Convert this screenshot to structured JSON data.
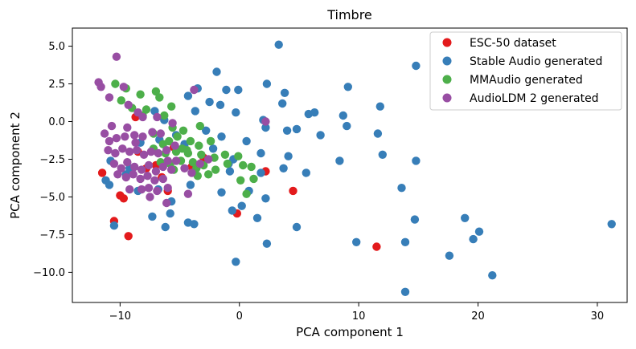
{
  "chart_data": {
    "type": "scatter",
    "title": "Timbre",
    "xlabel": "PCA component 1",
    "ylabel": "PCA component 2",
    "xlim": [
      -14,
      32.5
    ],
    "ylim": [
      -12,
      6.2
    ],
    "xticks": [
      -10,
      0,
      10,
      20,
      30
    ],
    "xtick_labels": [
      "−10",
      "0",
      "10",
      "20",
      "30"
    ],
    "yticks": [
      5.0,
      2.5,
      0.0,
      -2.5,
      -5.0,
      -7.5,
      -10.0
    ],
    "ytick_labels": [
      "5.0",
      "2.5",
      "0.0",
      "−2.5",
      "−5.0",
      "−7.5",
      "−10.0"
    ],
    "grid": false,
    "legend_position": "top-right",
    "series": [
      {
        "name": "ESC-50 dataset",
        "color": "#e31a1c",
        "points": [
          [
            -11.5,
            -3.4
          ],
          [
            -10.5,
            -6.6
          ],
          [
            -10,
            -4.9
          ],
          [
            -9.7,
            -5.1
          ],
          [
            -9.3,
            -7.6
          ],
          [
            -8.5,
            -2.0
          ],
          [
            -7.8,
            -3.1
          ],
          [
            -7,
            -2.9
          ],
          [
            -6.5,
            -3.7
          ],
          [
            -5.5,
            -1.7
          ],
          [
            -4,
            -3.0
          ],
          [
            -3,
            -2.4
          ],
          [
            -0.2,
            -6.1
          ],
          [
            2.2,
            -3.3
          ],
          [
            4.5,
            -4.6
          ],
          [
            11.5,
            -8.3
          ],
          [
            -8.7,
            0.3
          ],
          [
            -6,
            -4.6
          ]
        ]
      },
      {
        "name": "Stable Audio generated",
        "color": "#377eb8",
        "points": [
          [
            3.3,
            5.1
          ],
          [
            14.8,
            3.7
          ],
          [
            -1.9,
            3.3
          ],
          [
            2.3,
            2.5
          ],
          [
            -3.5,
            2.2
          ],
          [
            -1.1,
            2.1
          ],
          [
            -0.1,
            2.1
          ],
          [
            3.8,
            1.9
          ],
          [
            9.1,
            2.3
          ],
          [
            -2.5,
            1.3
          ],
          [
            -1.6,
            1.1
          ],
          [
            3.6,
            1.2
          ],
          [
            5.8,
            0.5
          ],
          [
            6.3,
            0.6
          ],
          [
            8.7,
            0.4
          ],
          [
            11.8,
            1.0
          ],
          [
            -0.3,
            0.6
          ],
          [
            2,
            0.1
          ],
          [
            -2.8,
            -0.6
          ],
          [
            4,
            -0.6
          ],
          [
            6.8,
            -0.9
          ],
          [
            9,
            -0.3
          ],
          [
            11.6,
            -0.8
          ],
          [
            -1.5,
            -1.0
          ],
          [
            0.6,
            -1.3
          ],
          [
            2.2,
            -0.4
          ],
          [
            4.8,
            -0.5
          ],
          [
            1.8,
            -2.1
          ],
          [
            4.1,
            -2.3
          ],
          [
            -0.5,
            -2.5
          ],
          [
            8.4,
            -2.6
          ],
          [
            12,
            -2.2
          ],
          [
            14.8,
            -2.6
          ],
          [
            -0.9,
            -2.8
          ],
          [
            -0.8,
            -3.3
          ],
          [
            1.8,
            -3.4
          ],
          [
            3.7,
            -3.1
          ],
          [
            5.6,
            -3.4
          ],
          [
            0.8,
            -4.6
          ],
          [
            -1.5,
            -4.7
          ],
          [
            2.2,
            -5.1
          ],
          [
            0.2,
            -5.6
          ],
          [
            -0.6,
            -5.9
          ],
          [
            1.5,
            -6.4
          ],
          [
            13.6,
            -4.4
          ],
          [
            14.7,
            -6.5
          ],
          [
            18.9,
            -6.4
          ],
          [
            -7.3,
            -6.3
          ],
          [
            -4.3,
            -6.7
          ],
          [
            -3.8,
            -6.8
          ],
          [
            -6.2,
            -7.0
          ],
          [
            4.8,
            -7.0
          ],
          [
            20.1,
            -7.3
          ],
          [
            19.6,
            -7.8
          ],
          [
            2.3,
            -8.1
          ],
          [
            9.8,
            -8.0
          ],
          [
            13.9,
            -8.0
          ],
          [
            17.6,
            -8.9
          ],
          [
            -0.3,
            -9.3
          ],
          [
            21.2,
            -10.2
          ],
          [
            13.9,
            -11.3
          ],
          [
            31.2,
            -6.8
          ],
          [
            -11.2,
            -3.9
          ],
          [
            -10.9,
            -4.2
          ],
          [
            -10.8,
            -2.6
          ],
          [
            -10.5,
            -6.9
          ],
          [
            -9.5,
            -3.5
          ],
          [
            -6.8,
            -4.5
          ],
          [
            -5.7,
            -5.3
          ],
          [
            -5.8,
            -6.1
          ],
          [
            -8.5,
            -4.6
          ],
          [
            -9.2,
            -3.1
          ],
          [
            -7.1,
            0.7
          ],
          [
            -6.3,
            0.1
          ],
          [
            -5.3,
            -0.9
          ],
          [
            -4.6,
            -1.5
          ],
          [
            -4.3,
            1.7
          ],
          [
            -3.7,
            0.7
          ],
          [
            -4.1,
            -4.2
          ],
          [
            -2.2,
            -1.8
          ],
          [
            -6.7,
            -1.2
          ],
          [
            -8.3,
            -1.4
          ]
        ]
      },
      {
        "name": "MMAudio generated",
        "color": "#4daf4a",
        "points": [
          [
            -10.4,
            2.5
          ],
          [
            -9.5,
            2.2
          ],
          [
            -9.9,
            1.4
          ],
          [
            -8.3,
            1.8
          ],
          [
            -7,
            2.0
          ],
          [
            -6.7,
            1.6
          ],
          [
            -9,
            0.9
          ],
          [
            -7.8,
            0.8
          ],
          [
            -5.7,
            1.0
          ],
          [
            -6.3,
            0.4
          ],
          [
            -5.6,
            -0.4
          ],
          [
            -4.7,
            -0.6
          ],
          [
            -3.3,
            -0.3
          ],
          [
            -5.2,
            -1.0
          ],
          [
            -4.1,
            -1.3
          ],
          [
            -3.4,
            -1.6
          ],
          [
            -2.4,
            -1.3
          ],
          [
            -6.4,
            -1.5
          ],
          [
            -7.2,
            -1.8
          ],
          [
            -6.2,
            -2.1
          ],
          [
            -5.3,
            -2.0
          ],
          [
            -4.3,
            -2.1
          ],
          [
            -3.2,
            -2.2
          ],
          [
            -2.1,
            -2.4
          ],
          [
            -1.2,
            -2.2
          ],
          [
            -0.1,
            -2.3
          ],
          [
            -6.6,
            -2.7
          ],
          [
            -5.8,
            -2.8
          ],
          [
            -4.9,
            -2.6
          ],
          [
            -3.9,
            -2.7
          ],
          [
            -3.0,
            -2.9
          ],
          [
            -2.0,
            -3.2
          ],
          [
            -1.0,
            -2.8
          ],
          [
            0.3,
            -2.9
          ],
          [
            1.0,
            -3.0
          ],
          [
            -2.6,
            -3.5
          ],
          [
            0.1,
            -3.9
          ],
          [
            1.2,
            -3.8
          ],
          [
            -3.5,
            -3.6
          ],
          [
            0.6,
            -4.8
          ],
          [
            -4.8,
            -1.8
          ],
          [
            -5.9,
            -1.3
          ],
          [
            -7.2,
            -0.8
          ],
          [
            -8.1,
            0.4
          ],
          [
            -4.4,
            -1.9
          ],
          [
            -5.5,
            -3.2
          ],
          [
            -3.6,
            -3.1
          ]
        ]
      },
      {
        "name": "AudioLDM 2 generated",
        "color": "#984ea3",
        "points": [
          [
            -10.3,
            4.3
          ],
          [
            -11.8,
            2.6
          ],
          [
            -11.6,
            2.3
          ],
          [
            -10.9,
            1.6
          ],
          [
            -9.7,
            2.3
          ],
          [
            -9.3,
            1.1
          ],
          [
            -8.5,
            0.6
          ],
          [
            -8.1,
            0.3
          ],
          [
            -6.9,
            0.3
          ],
          [
            -5.6,
            -0.1
          ],
          [
            -3.8,
            2.1
          ],
          [
            2.2,
            0
          ],
          [
            -11.3,
            -0.8
          ],
          [
            -10.9,
            -1.3
          ],
          [
            -10.3,
            -1.1
          ],
          [
            -9.6,
            -1.0
          ],
          [
            -8.8,
            -0.9
          ],
          [
            -8.1,
            -1.0
          ],
          [
            -7.3,
            -0.7
          ],
          [
            -6.6,
            -0.8
          ],
          [
            -11.0,
            -1.9
          ],
          [
            -10.4,
            -2.1
          ],
          [
            -9.8,
            -1.8
          ],
          [
            -9.2,
            -2.0
          ],
          [
            -8.6,
            -1.9
          ],
          [
            -8.0,
            -2.2
          ],
          [
            -7.4,
            -2.0
          ],
          [
            -6.8,
            -2.1
          ],
          [
            -6.1,
            -1.9
          ],
          [
            -10.5,
            -2.8
          ],
          [
            -9.9,
            -3.1
          ],
          [
            -9.4,
            -2.7
          ],
          [
            -8.8,
            -3.0
          ],
          [
            -8.2,
            -3.2
          ],
          [
            -7.6,
            -2.9
          ],
          [
            -7.0,
            -3.3
          ],
          [
            -6.4,
            -3.0
          ],
          [
            -5.7,
            -3.2
          ],
          [
            -10.2,
            -3.5
          ],
          [
            -9.5,
            -3.7
          ],
          [
            -8.9,
            -3.5
          ],
          [
            -8.3,
            -3.8
          ],
          [
            -7.7,
            -3.6
          ],
          [
            -7.1,
            -3.9
          ],
          [
            -6.4,
            -3.8
          ],
          [
            -9.2,
            -4.5
          ],
          [
            -8.2,
            -4.5
          ],
          [
            -7.6,
            -4.4
          ],
          [
            -6.9,
            -4.6
          ],
          [
            -6.0,
            -4.4
          ],
          [
            -5.3,
            -2.6
          ],
          [
            -4.6,
            -3.1
          ],
          [
            -4.0,
            -3.4
          ],
          [
            -3.3,
            -2.8
          ],
          [
            -2.6,
            -2.5
          ],
          [
            -4.3,
            -4.8
          ],
          [
            -6.1,
            -5.4
          ],
          [
            -7.5,
            -5.0
          ],
          [
            -8.7,
            -1.4
          ],
          [
            -9.4,
            -0.4
          ],
          [
            -10.7,
            -0.3
          ],
          [
            -6.0,
            -2.6
          ],
          [
            -5.4,
            -1.6
          ]
        ]
      }
    ]
  }
}
